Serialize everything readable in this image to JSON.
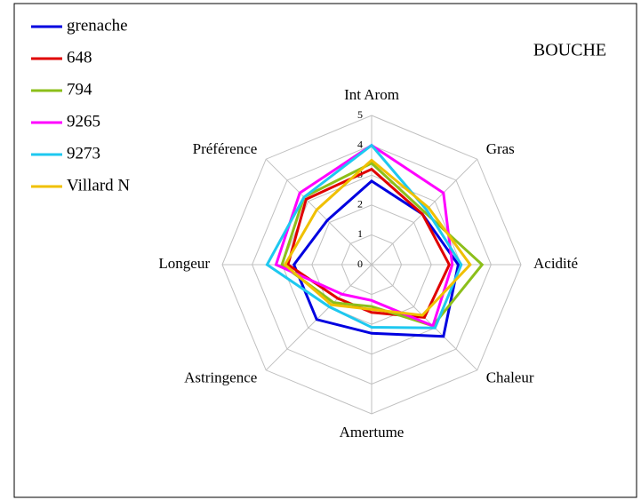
{
  "chart_data": {
    "type": "radar",
    "title": "BOUCHE",
    "categories": [
      "Int Arom",
      "Gras",
      "Acidité",
      "Chaleur",
      "Amertume",
      "Astringence",
      "Longeur",
      "Préférence"
    ],
    "ylim": [
      0,
      5
    ],
    "yticks": [
      0,
      1,
      2,
      3,
      4,
      5
    ],
    "grid": true,
    "legend": "top-left",
    "series": [
      {
        "name": "grenache",
        "color": "#0000e0",
        "values": [
          2.8,
          2.4,
          2.9,
          3.4,
          2.3,
          2.6,
          2.6,
          2.1
        ]
      },
      {
        "name": "648",
        "color": "#e00000",
        "values": [
          3.2,
          2.4,
          2.6,
          2.5,
          1.6,
          1.6,
          2.8,
          3.1
        ]
      },
      {
        "name": "794",
        "color": "#8cbf1a",
        "values": [
          3.4,
          2.5,
          3.7,
          2.9,
          1.4,
          1.8,
          3.0,
          3.2
        ]
      },
      {
        "name": "9265",
        "color": "#ff00ff",
        "values": [
          4.0,
          3.4,
          2.7,
          2.9,
          1.2,
          1.4,
          3.2,
          3.4
        ]
      },
      {
        "name": "9273",
        "color": "#1ec8f0",
        "values": [
          4.0,
          2.6,
          3.0,
          3.0,
          2.1,
          2.0,
          3.5,
          3.2
        ]
      },
      {
        "name": "Villard N",
        "color": "#f0c000",
        "values": [
          3.5,
          2.7,
          3.3,
          2.4,
          1.5,
          1.9,
          2.9,
          2.6
        ]
      }
    ]
  }
}
